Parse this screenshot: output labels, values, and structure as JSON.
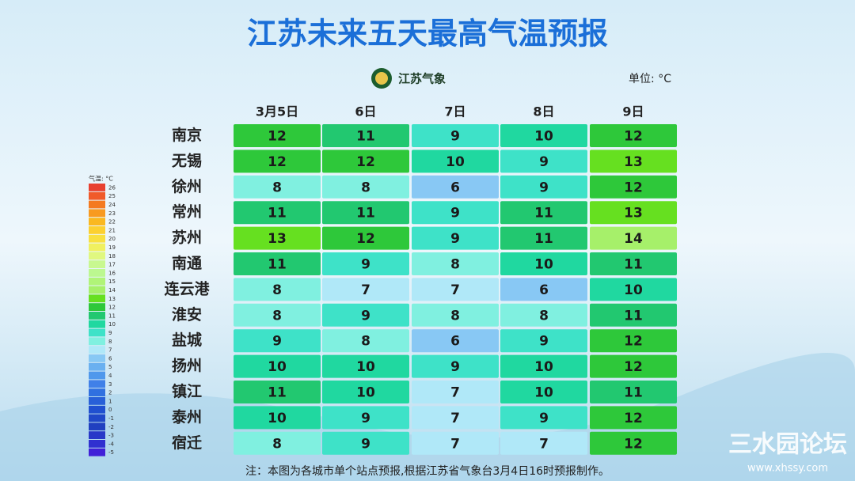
{
  "chart_data": {
    "type": "heatmap",
    "title": "江苏未来五天最高气温预报",
    "source": "江苏气象",
    "unit_label": "单位: °C",
    "columns": [
      "3月5日",
      "6日",
      "7日",
      "8日",
      "9日"
    ],
    "rows": [
      "南京",
      "无锡",
      "徐州",
      "常州",
      "苏州",
      "南通",
      "连云港",
      "淮安",
      "盐城",
      "扬州",
      "镇江",
      "泰州",
      "宿迁"
    ],
    "values": [
      [
        12,
        11,
        9,
        10,
        12
      ],
      [
        12,
        12,
        10,
        9,
        13
      ],
      [
        8,
        8,
        6,
        9,
        12
      ],
      [
        11,
        11,
        9,
        11,
        13
      ],
      [
        13,
        12,
        9,
        11,
        14
      ],
      [
        11,
        9,
        8,
        10,
        11
      ],
      [
        8,
        7,
        7,
        6,
        10
      ],
      [
        8,
        9,
        8,
        8,
        11
      ],
      [
        9,
        8,
        6,
        9,
        12
      ],
      [
        10,
        10,
        9,
        10,
        12
      ],
      [
        11,
        10,
        7,
        10,
        11
      ],
      [
        10,
        9,
        7,
        9,
        12
      ],
      [
        8,
        9,
        7,
        7,
        12
      ]
    ],
    "colorbar": {
      "label": "气温: °C",
      "ticks": [
        26,
        25,
        24,
        23,
        22,
        21,
        20,
        19,
        18,
        17,
        16,
        15,
        14,
        13,
        12,
        11,
        10,
        9,
        8,
        7,
        6,
        5,
        4,
        3,
        2,
        1,
        0,
        -1,
        -2,
        -3,
        -4,
        -5
      ],
      "colors": [
        "#e84030",
        "#f05a2a",
        "#f47a20",
        "#f89a20",
        "#fab820",
        "#fcd030",
        "#f8e040",
        "#f0f060",
        "#e0f880",
        "#c8f890",
        "#bcf890",
        "#b0f478",
        "#a6f06a",
        "#66e020",
        "#2ec83a",
        "#22c870",
        "#20d8a0",
        "#3ee2c8",
        "#80f0e0",
        "#b0e8f8",
        "#88c8f4",
        "#6ab0f0",
        "#5098ec",
        "#4080e8",
        "#3070e0",
        "#2860d8",
        "#2050d0",
        "#2048c8",
        "#2040c0",
        "#2838c8",
        "#3030d0",
        "#4020d8"
      ]
    },
    "note": "注：本图为各城市单个站点预报,根据江苏省气象台3月4日16时预报制作。",
    "watermark": "三水园论坛",
    "watermark_url": "www.xhssy.com"
  }
}
